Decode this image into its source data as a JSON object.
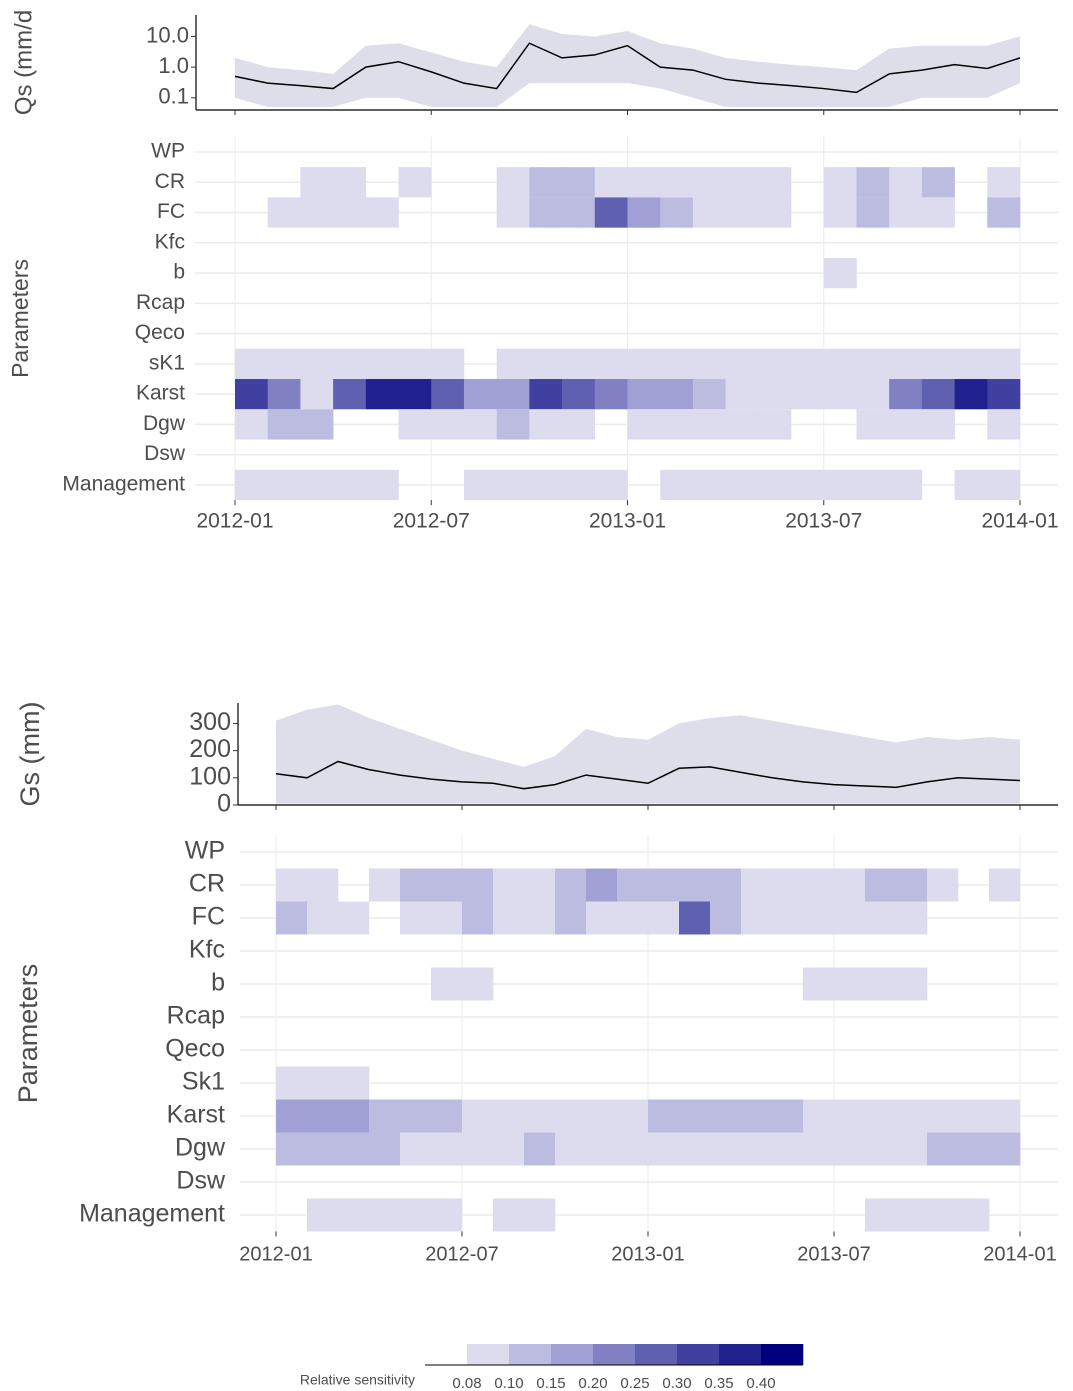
{
  "chart_data": [
    {
      "type": "line",
      "y_label": "Qs (mm/d",
      "log_y": true,
      "x": [
        "2012-01",
        "2012-02",
        "2012-03",
        "2012-04",
        "2012-05",
        "2012-06",
        "2012-07",
        "2012-08",
        "2012-09",
        "2012-10",
        "2012-11",
        "2012-12",
        "2013-01",
        "2013-02",
        "2013-03",
        "2013-04",
        "2013-05",
        "2013-06",
        "2013-07",
        "2013-08",
        "2013-09",
        "2013-10",
        "2013-11",
        "2013-12",
        "2014-01"
      ],
      "values": [
        0.5,
        0.3,
        0.25,
        0.2,
        1.0,
        1.5,
        0.7,
        0.3,
        0.2,
        6,
        2,
        2.5,
        5,
        1,
        0.8,
        0.4,
        0.3,
        0.25,
        0.2,
        0.15,
        0.6,
        0.8,
        1.2,
        0.9,
        2
      ],
      "band_lower": [
        0.1,
        0.05,
        0.05,
        0.05,
        0.1,
        0.1,
        0.05,
        0.05,
        0.05,
        0.3,
        0.3,
        0.3,
        0.3,
        0.2,
        0.1,
        0.05,
        0.05,
        0.05,
        0.05,
        0.05,
        0.05,
        0.1,
        0.1,
        0.1,
        0.3
      ],
      "band_upper": [
        2,
        1,
        0.8,
        0.6,
        5,
        6,
        3,
        1.5,
        1,
        25,
        12,
        10,
        15,
        6,
        4,
        2,
        1.5,
        1.2,
        1,
        0.8,
        4,
        5,
        5,
        5,
        10
      ],
      "color": "#000000",
      "band_color": "#dedeeb",
      "xlim": [
        "2012-01",
        "2014-01"
      ],
      "xticks": [
        "2012-01",
        "2012-07",
        "2013-01",
        "2013-07",
        "2014-01"
      ],
      "ylim": [
        0.04,
        50
      ],
      "yticks": [
        {
          "value": 0.1,
          "label": "0.1"
        },
        {
          "value": 1,
          "label": "1.0"
        },
        {
          "value": 10,
          "label": "10.0"
        }
      ]
    },
    {
      "type": "heatmap",
      "y_label": "Parameters",
      "x": [
        "2012-01",
        "2012-02",
        "2012-03",
        "2012-04",
        "2012-05",
        "2012-06",
        "2012-07",
        "2012-08",
        "2012-09",
        "2012-10",
        "2012-11",
        "2012-12",
        "2013-01",
        "2013-02",
        "2013-03",
        "2013-04",
        "2013-05",
        "2013-06",
        "2013-07",
        "2013-08",
        "2013-09",
        "2013-10",
        "2013-11",
        "2013-12"
      ],
      "xlim": [
        "2012-01",
        "2014-01"
      ],
      "xticks": [
        "2012-01",
        "2012-07",
        "2013-01",
        "2013-07",
        "2014-01"
      ],
      "series": [
        {
          "name": "WP",
          "values": [
            null,
            null,
            null,
            null,
            null,
            null,
            null,
            null,
            null,
            null,
            null,
            null,
            null,
            null,
            null,
            null,
            null,
            null,
            null,
            null,
            null,
            null,
            null,
            null
          ]
        },
        {
          "name": "CR",
          "values": [
            null,
            null,
            0.08,
            0.08,
            null,
            0.08,
            null,
            null,
            0.08,
            0.1,
            0.1,
            0.08,
            0.08,
            0.08,
            0.08,
            0.08,
            0.08,
            null,
            0.08,
            0.1,
            0.08,
            0.1,
            null,
            0.08
          ]
        },
        {
          "name": "FC",
          "values": [
            null,
            0.08,
            0.08,
            0.08,
            0.08,
            null,
            null,
            null,
            0.08,
            0.1,
            0.1,
            0.25,
            0.15,
            0.1,
            0.08,
            0.08,
            0.08,
            null,
            0.08,
            0.1,
            0.08,
            0.08,
            null,
            0.1
          ]
        },
        {
          "name": "Kfc",
          "values": [
            null,
            null,
            null,
            null,
            null,
            null,
            null,
            null,
            null,
            null,
            null,
            null,
            null,
            null,
            null,
            null,
            null,
            null,
            null,
            null,
            null,
            null,
            null,
            null
          ]
        },
        {
          "name": "b",
          "values": [
            null,
            null,
            null,
            null,
            null,
            null,
            null,
            null,
            null,
            null,
            null,
            null,
            null,
            null,
            null,
            null,
            null,
            null,
            0.08,
            null,
            null,
            null,
            null,
            null
          ]
        },
        {
          "name": "Rcap",
          "values": [
            null,
            null,
            null,
            null,
            null,
            null,
            null,
            null,
            null,
            null,
            null,
            null,
            null,
            null,
            null,
            null,
            null,
            null,
            null,
            null,
            null,
            null,
            null,
            null
          ]
        },
        {
          "name": "Qeco",
          "values": [
            null,
            null,
            null,
            null,
            null,
            null,
            null,
            null,
            null,
            null,
            null,
            null,
            null,
            null,
            null,
            null,
            null,
            null,
            null,
            null,
            null,
            null,
            null,
            null
          ]
        },
        {
          "name": "sK1",
          "values": [
            0.08,
            0.08,
            0.08,
            0.08,
            0.08,
            0.08,
            0.08,
            null,
            0.08,
            0.08,
            0.08,
            0.08,
            0.08,
            0.08,
            0.08,
            0.08,
            0.08,
            0.08,
            0.08,
            0.08,
            0.08,
            0.08,
            0.08,
            0.08
          ]
        },
        {
          "name": "Karst",
          "values": [
            0.3,
            0.2,
            0.08,
            0.25,
            0.35,
            0.35,
            0.25,
            0.15,
            0.15,
            0.3,
            0.25,
            0.2,
            0.15,
            0.15,
            0.1,
            0.08,
            0.08,
            0.08,
            0.08,
            0.08,
            0.2,
            0.25,
            0.35,
            0.3
          ]
        },
        {
          "name": "Dgw",
          "values": [
            0.08,
            0.1,
            0.1,
            null,
            null,
            0.08,
            0.08,
            0.08,
            0.1,
            0.08,
            0.08,
            null,
            0.08,
            0.08,
            0.08,
            0.08,
            0.08,
            null,
            null,
            0.08,
            0.08,
            0.08,
            null,
            0.08
          ]
        },
        {
          "name": "Dsw",
          "values": [
            null,
            null,
            null,
            null,
            null,
            null,
            null,
            null,
            null,
            null,
            null,
            null,
            null,
            null,
            null,
            null,
            null,
            null,
            null,
            null,
            null,
            null,
            null,
            null
          ]
        },
        {
          "name": "Management",
          "values": [
            0.08,
            0.08,
            0.08,
            0.08,
            0.08,
            null,
            null,
            0.08,
            0.08,
            0.08,
            0.08,
            0.08,
            null,
            0.08,
            0.08,
            0.08,
            0.08,
            0.08,
            0.08,
            0.08,
            0.08,
            null,
            0.08,
            0.08
          ]
        }
      ]
    },
    {
      "type": "line",
      "y_label": "Gs (mm)",
      "log_y": false,
      "x": [
        "2012-01",
        "2012-02",
        "2012-03",
        "2012-04",
        "2012-05",
        "2012-06",
        "2012-07",
        "2012-08",
        "2012-09",
        "2012-10",
        "2012-11",
        "2012-12",
        "2013-01",
        "2013-02",
        "2013-03",
        "2013-04",
        "2013-05",
        "2013-06",
        "2013-07",
        "2013-08",
        "2013-09",
        "2013-10",
        "2013-11",
        "2013-12",
        "2014-01"
      ],
      "values": [
        115,
        100,
        160,
        130,
        110,
        95,
        85,
        80,
        60,
        75,
        110,
        95,
        80,
        135,
        140,
        120,
        100,
        85,
        75,
        70,
        65,
        85,
        100,
        95,
        90
      ],
      "band_lower": [
        5,
        5,
        5,
        5,
        5,
        5,
        5,
        5,
        5,
        5,
        5,
        5,
        5,
        5,
        5,
        5,
        5,
        5,
        5,
        5,
        5,
        5,
        5,
        5,
        5
      ],
      "band_upper": [
        310,
        350,
        370,
        320,
        280,
        240,
        200,
        170,
        140,
        180,
        280,
        250,
        240,
        300,
        320,
        330,
        310,
        290,
        270,
        250,
        230,
        250,
        240,
        250,
        240
      ],
      "color": "#000000",
      "band_color": "#dedeeb",
      "xlim": [
        "2012-01",
        "2014-01"
      ],
      "xticks": [
        "2012-01",
        "2012-07",
        "2013-01",
        "2013-07",
        "2014-01"
      ],
      "ylim": [
        0,
        375
      ],
      "yticks": [
        0,
        100,
        200,
        300
      ]
    },
    {
      "type": "heatmap",
      "y_label": "Parameters",
      "x": [
        "2012-01",
        "2012-02",
        "2012-03",
        "2012-04",
        "2012-05",
        "2012-06",
        "2012-07",
        "2012-08",
        "2012-09",
        "2012-10",
        "2012-11",
        "2012-12",
        "2013-01",
        "2013-02",
        "2013-03",
        "2013-04",
        "2013-05",
        "2013-06",
        "2013-07",
        "2013-08",
        "2013-09",
        "2013-10",
        "2013-11",
        "2013-12"
      ],
      "xlim": [
        "2012-01",
        "2014-01"
      ],
      "xticks": [
        "2012-01",
        "2012-07",
        "2013-01",
        "2013-07",
        "2014-01"
      ],
      "series": [
        {
          "name": "WP",
          "values": [
            null,
            null,
            null,
            null,
            null,
            null,
            null,
            null,
            null,
            null,
            null,
            null,
            null,
            null,
            null,
            null,
            null,
            null,
            null,
            null,
            null,
            null,
            null,
            null
          ]
        },
        {
          "name": "CR",
          "values": [
            0.08,
            0.08,
            null,
            0.08,
            0.1,
            0.1,
            0.1,
            0.08,
            0.08,
            0.1,
            0.15,
            0.1,
            0.1,
            0.1,
            0.1,
            0.08,
            0.08,
            0.08,
            0.08,
            0.1,
            0.1,
            0.08,
            null,
            0.08
          ]
        },
        {
          "name": "FC",
          "values": [
            0.1,
            0.08,
            0.08,
            null,
            0.08,
            0.08,
            0.1,
            0.08,
            0.08,
            0.1,
            0.08,
            0.08,
            0.08,
            0.25,
            0.1,
            0.08,
            0.08,
            0.08,
            0.08,
            0.08,
            0.08,
            null,
            null,
            null
          ]
        },
        {
          "name": "Kfc",
          "values": [
            null,
            null,
            null,
            null,
            null,
            null,
            null,
            null,
            null,
            null,
            null,
            null,
            null,
            null,
            null,
            null,
            null,
            null,
            null,
            null,
            null,
            null,
            null,
            null
          ]
        },
        {
          "name": "b",
          "values": [
            null,
            null,
            null,
            null,
            null,
            0.08,
            0.08,
            null,
            null,
            null,
            null,
            null,
            null,
            null,
            null,
            null,
            null,
            0.08,
            0.08,
            0.08,
            0.08,
            null,
            null,
            null
          ]
        },
        {
          "name": "Rcap",
          "values": [
            null,
            null,
            null,
            null,
            null,
            null,
            null,
            null,
            null,
            null,
            null,
            null,
            null,
            null,
            null,
            null,
            null,
            null,
            null,
            null,
            null,
            null,
            null,
            null
          ]
        },
        {
          "name": "Qeco",
          "values": [
            null,
            null,
            null,
            null,
            null,
            null,
            null,
            null,
            null,
            null,
            null,
            null,
            null,
            null,
            null,
            null,
            null,
            null,
            null,
            null,
            null,
            null,
            null,
            null
          ]
        },
        {
          "name": "Sk1",
          "values": [
            0.08,
            0.08,
            0.08,
            null,
            null,
            null,
            null,
            null,
            null,
            null,
            null,
            null,
            null,
            null,
            null,
            null,
            null,
            null,
            null,
            null,
            null,
            null,
            null,
            null
          ]
        },
        {
          "name": "Karst",
          "values": [
            0.15,
            0.15,
            0.15,
            0.1,
            0.1,
            0.1,
            0.08,
            0.08,
            0.08,
            0.08,
            0.08,
            0.08,
            0.1,
            0.1,
            0.1,
            0.1,
            0.1,
            0.08,
            0.08,
            0.08,
            0.08,
            0.08,
            0.08,
            0.08
          ]
        },
        {
          "name": "Dgw",
          "values": [
            0.1,
            0.1,
            0.1,
            0.1,
            0.08,
            0.08,
            0.08,
            0.08,
            0.1,
            0.08,
            0.08,
            0.08,
            0.08,
            0.08,
            0.08,
            0.08,
            0.08,
            0.08,
            0.08,
            0.08,
            0.08,
            0.1,
            0.1,
            0.1
          ]
        },
        {
          "name": "Dsw",
          "values": [
            null,
            null,
            null,
            null,
            null,
            null,
            null,
            null,
            null,
            null,
            null,
            null,
            null,
            null,
            null,
            null,
            null,
            null,
            null,
            null,
            null,
            null,
            null,
            null
          ]
        },
        {
          "name": "Management",
          "values": [
            null,
            0.08,
            0.08,
            0.08,
            0.08,
            0.08,
            null,
            0.08,
            0.08,
            null,
            null,
            null,
            null,
            null,
            null,
            null,
            null,
            null,
            null,
            0.08,
            0.08,
            0.08,
            0.08,
            null
          ]
        }
      ]
    },
    {
      "type": "colorbar",
      "title": "Relative sensitivity",
      "ticks": [
        0.08,
        {
          "value": 0.1,
          "label": "0.10"
        },
        0.15,
        {
          "value": 0.2,
          "label": "0.20"
        },
        0.25,
        {
          "value": 0.3,
          "label": "0.30"
        },
        0.35,
        {
          "value": 0.4,
          "label": "0.40"
        }
      ],
      "colors": [
        "#dcdcee",
        "#bcbce0",
        "#a0a0d4",
        "#8080c2",
        "#6060b0",
        "#4040a0",
        "#20208e",
        "#00007f"
      ]
    }
  ]
}
